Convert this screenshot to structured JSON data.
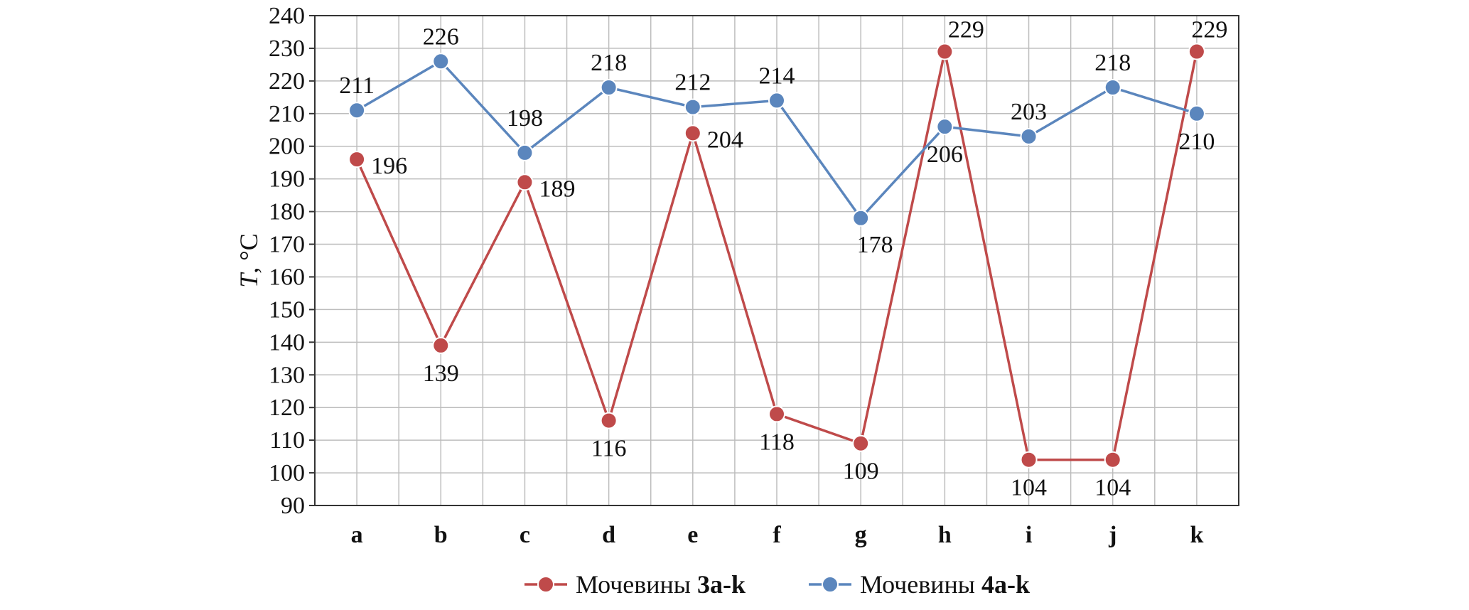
{
  "chart_data": {
    "type": "line",
    "categories": [
      "a",
      "b",
      "c",
      "d",
      "e",
      "f",
      "g",
      "h",
      "i",
      "j",
      "k"
    ],
    "ylabel_var": "T",
    "ylabel_unit": ", °C",
    "ylim": [
      90,
      240
    ],
    "ytick_step": 10,
    "grid": true,
    "legend_position": "bottom",
    "series": [
      {
        "name": "Мочевины 3a-k",
        "name_prefix": "Мочевины ",
        "name_bold": "3a-k",
        "color": "#bf4a4a",
        "values": [
          196,
          139,
          189,
          116,
          204,
          118,
          109,
          229,
          104,
          104,
          229
        ]
      },
      {
        "name": "Мочевины 4a-k",
        "name_prefix": "Мочевины ",
        "name_bold": "4a-k",
        "color": "#5b86bd",
        "values": [
          211,
          226,
          198,
          218,
          212,
          214,
          178,
          206,
          203,
          218,
          210
        ]
      }
    ]
  }
}
